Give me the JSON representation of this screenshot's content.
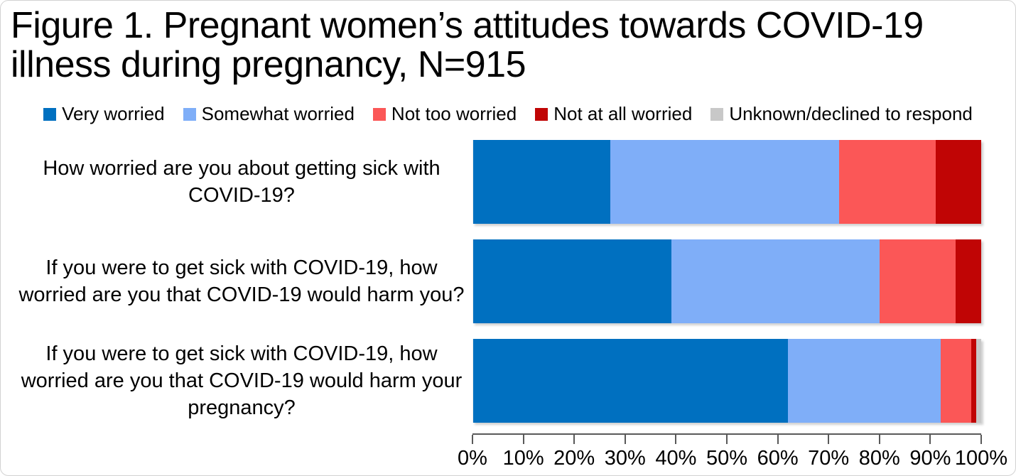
{
  "figure_title": "Figure 1. Pregnant women’s attitudes towards COVID-19 illness during pregnancy, N=915",
  "chart_data": {
    "type": "bar",
    "variant": "horizontal-stacked",
    "title": "Figure 1. Pregnant women’s attitudes towards COVID-19 illness during pregnancy, N=915",
    "sample_size_label": "N=915",
    "unit": "percent",
    "xlim": [
      0,
      100
    ],
    "grid": false,
    "legend_position": "top",
    "x_ticks": [
      "0%",
      "10%",
      "20%",
      "30%",
      "40%",
      "50%",
      "60%",
      "70%",
      "80%",
      "90%",
      "100%"
    ],
    "categories": [
      "How worried are you about getting sick with COVID-19?",
      "If you were to get sick with COVID-19, how worried are you that COVID-19 would harm you?",
      "If you were to get sick with COVID-19, how worried are you that COVID-19 would harm your pregnancy?"
    ],
    "series": [
      {
        "name": "Very worried",
        "color": "#0070C0",
        "values": [
          27,
          39,
          62
        ]
      },
      {
        "name": "Somewhat worried",
        "color": "#7FAEF8",
        "values": [
          45,
          41,
          30
        ]
      },
      {
        "name": "Not too worried",
        "color": "#FB5757",
        "values": [
          19,
          15,
          6
        ]
      },
      {
        "name": "Not at all worried",
        "color": "#C00505",
        "values": [
          9,
          5,
          1
        ]
      },
      {
        "name": "Unknown/declined to respond",
        "color": "#C8C8C8",
        "values": [
          0,
          0,
          1
        ]
      }
    ]
  }
}
